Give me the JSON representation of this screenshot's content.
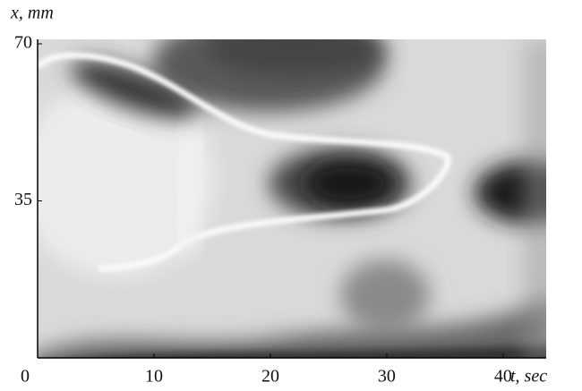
{
  "chart_data": {
    "type": "image",
    "x_label": "t, sec",
    "y_label": "x, mm",
    "xlim": [
      0,
      43.7
    ],
    "ylim": [
      0,
      71
    ],
    "xticks": [
      0,
      10,
      20,
      30,
      40
    ],
    "yticks": [
      35,
      70
    ]
  }
}
